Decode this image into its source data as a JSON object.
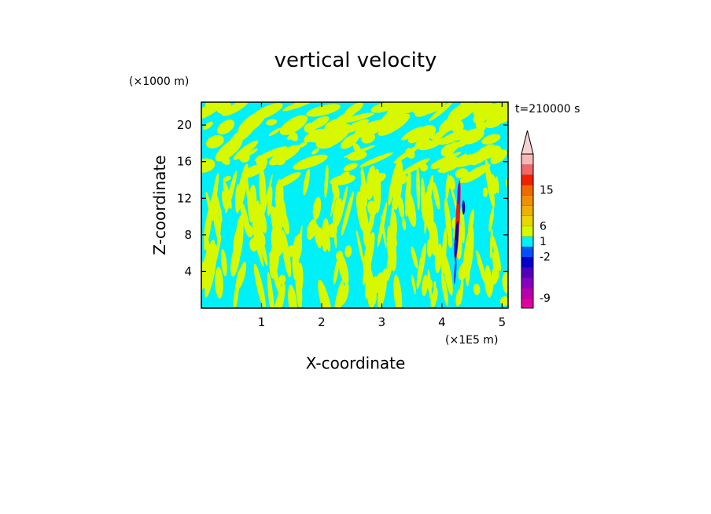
{
  "chart_data": {
    "type": "heatmap",
    "title": "vertical velocity",
    "xlabel": "X-coordinate",
    "ylabel": "Z-coordinate",
    "x_unit": "(×1E5 m)",
    "y_unit": "(×1000 m)",
    "time_label": "t=210000 s",
    "xlim": [
      0,
      5.1
    ],
    "ylim": [
      0,
      22.5
    ],
    "x_ticks": [
      1,
      2,
      3,
      4,
      5
    ],
    "x_tick_labels": [
      "1",
      "2",
      "3",
      "4",
      "5"
    ],
    "y_ticks": [
      4,
      8,
      12,
      16,
      20
    ],
    "y_tick_labels": [
      "4",
      "8",
      "12",
      "16",
      "20"
    ],
    "background_color": "#00f0f8",
    "positive_color": "#d8f800",
    "colorbar": {
      "colors": [
        "#e000a0",
        "#b800b0",
        "#8800c0",
        "#5000b8",
        "#0000c8",
        "#0050ff",
        "#00f0f8",
        "#d8f800",
        "#e8d800",
        "#f0b000",
        "#f09000",
        "#f06800",
        "#f02000",
        "#f06868",
        "#f8b8b8"
      ],
      "arrow_color": "#f8d0d0",
      "labels": [
        "15",
        "6",
        "1",
        "-2",
        "-9"
      ],
      "label_levels": [
        11.5,
        8,
        6.5,
        5,
        1
      ]
    }
  }
}
